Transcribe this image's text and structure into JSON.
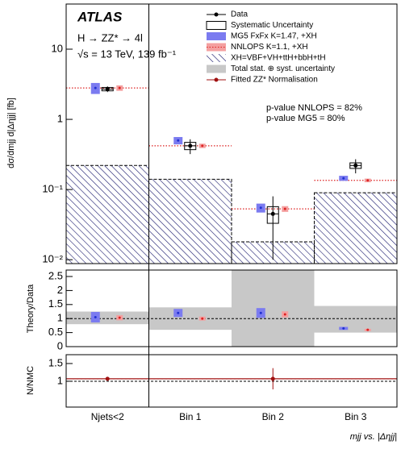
{
  "chart_data": {
    "type": "bar",
    "atlas": "ATLAS",
    "process": "H → ZZ* → 4l",
    "energy": "√s = 13 TeV, 139 fb⁻¹",
    "pvalues": [
      "p-value NNLOPS = 82%",
      "p-value MG5 = 80%"
    ],
    "ylabel": "dσ/dmjj d|Δηjj| [fb]",
    "xlabel": "mjj vs. |Δηjj|",
    "categories": [
      "Njets<2",
      "Bin 1",
      "Bin 2",
      "Bin 3"
    ],
    "log_y": true,
    "ylim": [
      0.0088,
      44
    ],
    "yticks": [
      {
        "value": 10,
        "label": "10"
      },
      {
        "value": 1,
        "label": "1"
      },
      {
        "value": 0.1,
        "label": "10⁻¹"
      },
      {
        "value": 0.01,
        "label": "10⁻²"
      }
    ],
    "data": {
      "name": "Data",
      "color": "#000000",
      "values": [
        2.7,
        0.42,
        0.045,
        0.22
      ],
      "errors": [
        0.25,
        0.1,
        0.035,
        0.05
      ],
      "sys_errors": [
        0.15,
        0.05,
        0.012,
        0.02
      ]
    },
    "systematic_name": "Systematic Uncertainty",
    "series": [
      {
        "name": "MG5 FxFx K=1.47, +XH",
        "color": "#7b7bf0",
        "values": [
          2.8,
          0.5,
          0.055,
          0.145
        ],
        "errors": [
          0.5,
          0.06,
          0.008,
          0.012
        ]
      },
      {
        "name": "NNLOPS K=1.1, +XH",
        "color": "#f4a0a0",
        "values": [
          2.8,
          0.42,
          0.053,
          0.135
        ],
        "errors": [
          0.25,
          0.03,
          0.005,
          0.008
        ]
      },
      {
        "name": "XH=VBF+VH+ttH+bbH+tH",
        "color": "#1a1a6e",
        "values": [
          0.22,
          0.14,
          0.018,
          0.09
        ]
      }
    ],
    "band_name": "Total stat. ⊕ syst. uncertainty",
    "norm_name": "Fitted ZZ* Normalisation",
    "ratio": {
      "ylabel": "Theory/Data",
      "ylim": [
        0,
        2.73
      ],
      "yticks": [
        0,
        0.5,
        1,
        1.5,
        2,
        2.5
      ],
      "reference": 1,
      "band_lower": [
        0.8,
        0.6,
        0,
        0.5
      ],
      "band_upper": [
        1.25,
        1.4,
        2.73,
        1.45
      ],
      "mg5": [
        1.05,
        1.2,
        1.2,
        0.65
      ],
      "nnlops": [
        1.03,
        1.0,
        1.15,
        0.6
      ]
    },
    "norm": {
      "ylabel": "N/NMC",
      "ylim": [
        0.27,
        1.75
      ],
      "yticks": [
        1,
        1.5
      ],
      "reference": 1,
      "line": 1.07,
      "values": [
        1.07,
        null,
        1.07,
        null
      ],
      "errors": [
        0.02,
        null,
        0.3,
        null
      ]
    }
  }
}
